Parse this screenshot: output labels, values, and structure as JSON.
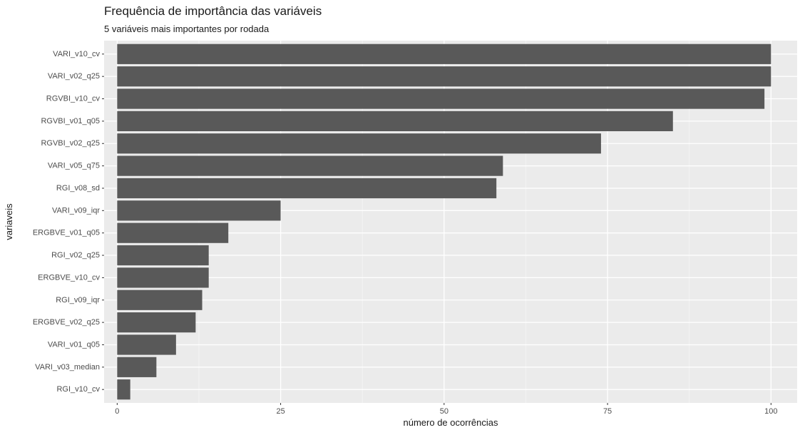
{
  "chart_data": {
    "type": "bar",
    "orientation": "horizontal",
    "title": "Frequência de importância das variáveis",
    "subtitle": "5 variáveis mais importantes por rodada",
    "xlabel": "número de ocorrências",
    "ylabel": "variaveis",
    "xlim": [
      -2,
      104
    ],
    "xticks": [
      0,
      25,
      50,
      75,
      100
    ],
    "categories": [
      "VARI_v10_cv",
      "VARI_v02_q25",
      "RGVBI_v10_cv",
      "RGVBI_v01_q05",
      "RGVBI_v02_q25",
      "VARI_v05_q75",
      "RGI_v08_sd",
      "VARI_v09_iqr",
      "ERGBVE_v01_q05",
      "RGI_v02_q25",
      "ERGBVE_v10_cv",
      "RGI_v09_iqr",
      "ERGBVE_v02_q25",
      "VARI_v01_q05",
      "VARI_v03_median",
      "RGI_v10_cv"
    ],
    "values": [
      100,
      100,
      99,
      85,
      74,
      59,
      58,
      25,
      17,
      14,
      14,
      13,
      12,
      9,
      6,
      2
    ],
    "grid": true,
    "colors": {
      "bar": "#595959",
      "panel": "#ebebeb",
      "grid_major": "#ffffff",
      "grid_minor": "#f5f5f5"
    }
  }
}
